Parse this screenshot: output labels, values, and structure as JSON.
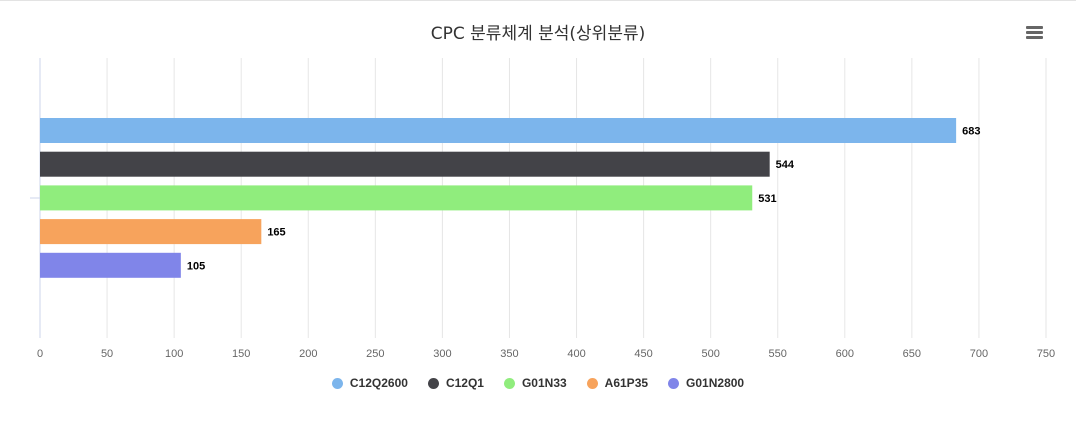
{
  "chart_data": {
    "type": "bar",
    "orientation": "horizontal",
    "title": "CPC 분류체계 분석(상위분류)",
    "xlabel": "",
    "ylabel": "",
    "xlim": [
      0,
      750
    ],
    "x_ticks": [
      "0",
      "50",
      "100",
      "150",
      "200",
      "250",
      "300",
      "350",
      "400",
      "450",
      "500",
      "550",
      "600",
      "650",
      "700",
      "750"
    ],
    "grid": true,
    "legend_position": "bottom",
    "series": [
      {
        "name": "C12Q2600",
        "value": 683,
        "label": "683",
        "color": "#7cb5ec"
      },
      {
        "name": "C12Q1",
        "value": 544,
        "label": "544",
        "color": "#434348"
      },
      {
        "name": "G01N33",
        "value": 531,
        "label": "531",
        "color": "#90ed7d"
      },
      {
        "name": "A61P35",
        "value": 165,
        "label": "165",
        "color": "#f7a35c"
      },
      {
        "name": "G01N2800",
        "value": 105,
        "label": "105",
        "color": "#8085e9"
      }
    ]
  },
  "menu": {
    "icon": "hamburger-menu-icon"
  }
}
